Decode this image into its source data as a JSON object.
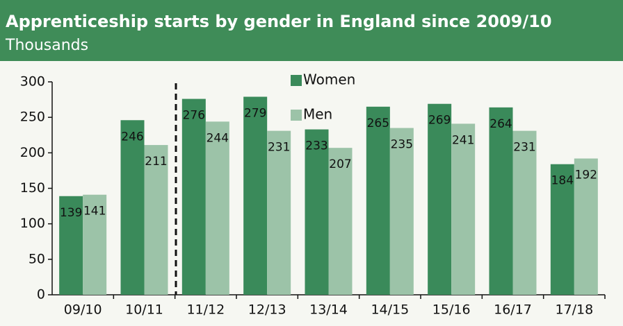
{
  "chart_data": {
    "type": "bar",
    "title": "Apprenticeship starts by gender in England since 2009/10",
    "subtitle": "Thousands",
    "categories": [
      "09/10",
      "10/11",
      "11/12",
      "12/13",
      "13/14",
      "14/15",
      "15/16",
      "16/17",
      "17/18"
    ],
    "series": [
      {
        "name": "Women",
        "color": "#3a8a5a",
        "values": [
          139,
          246,
          276,
          279,
          233,
          265,
          269,
          264,
          184
        ]
      },
      {
        "name": "Men",
        "color": "#9cc3a8",
        "values": [
          141,
          211,
          244,
          231,
          207,
          235,
          241,
          231,
          192
        ]
      }
    ],
    "ylim": [
      0,
      300
    ],
    "yticks": [
      0,
      50,
      100,
      150,
      200,
      250,
      300
    ],
    "legend": "top",
    "grid": false
  }
}
